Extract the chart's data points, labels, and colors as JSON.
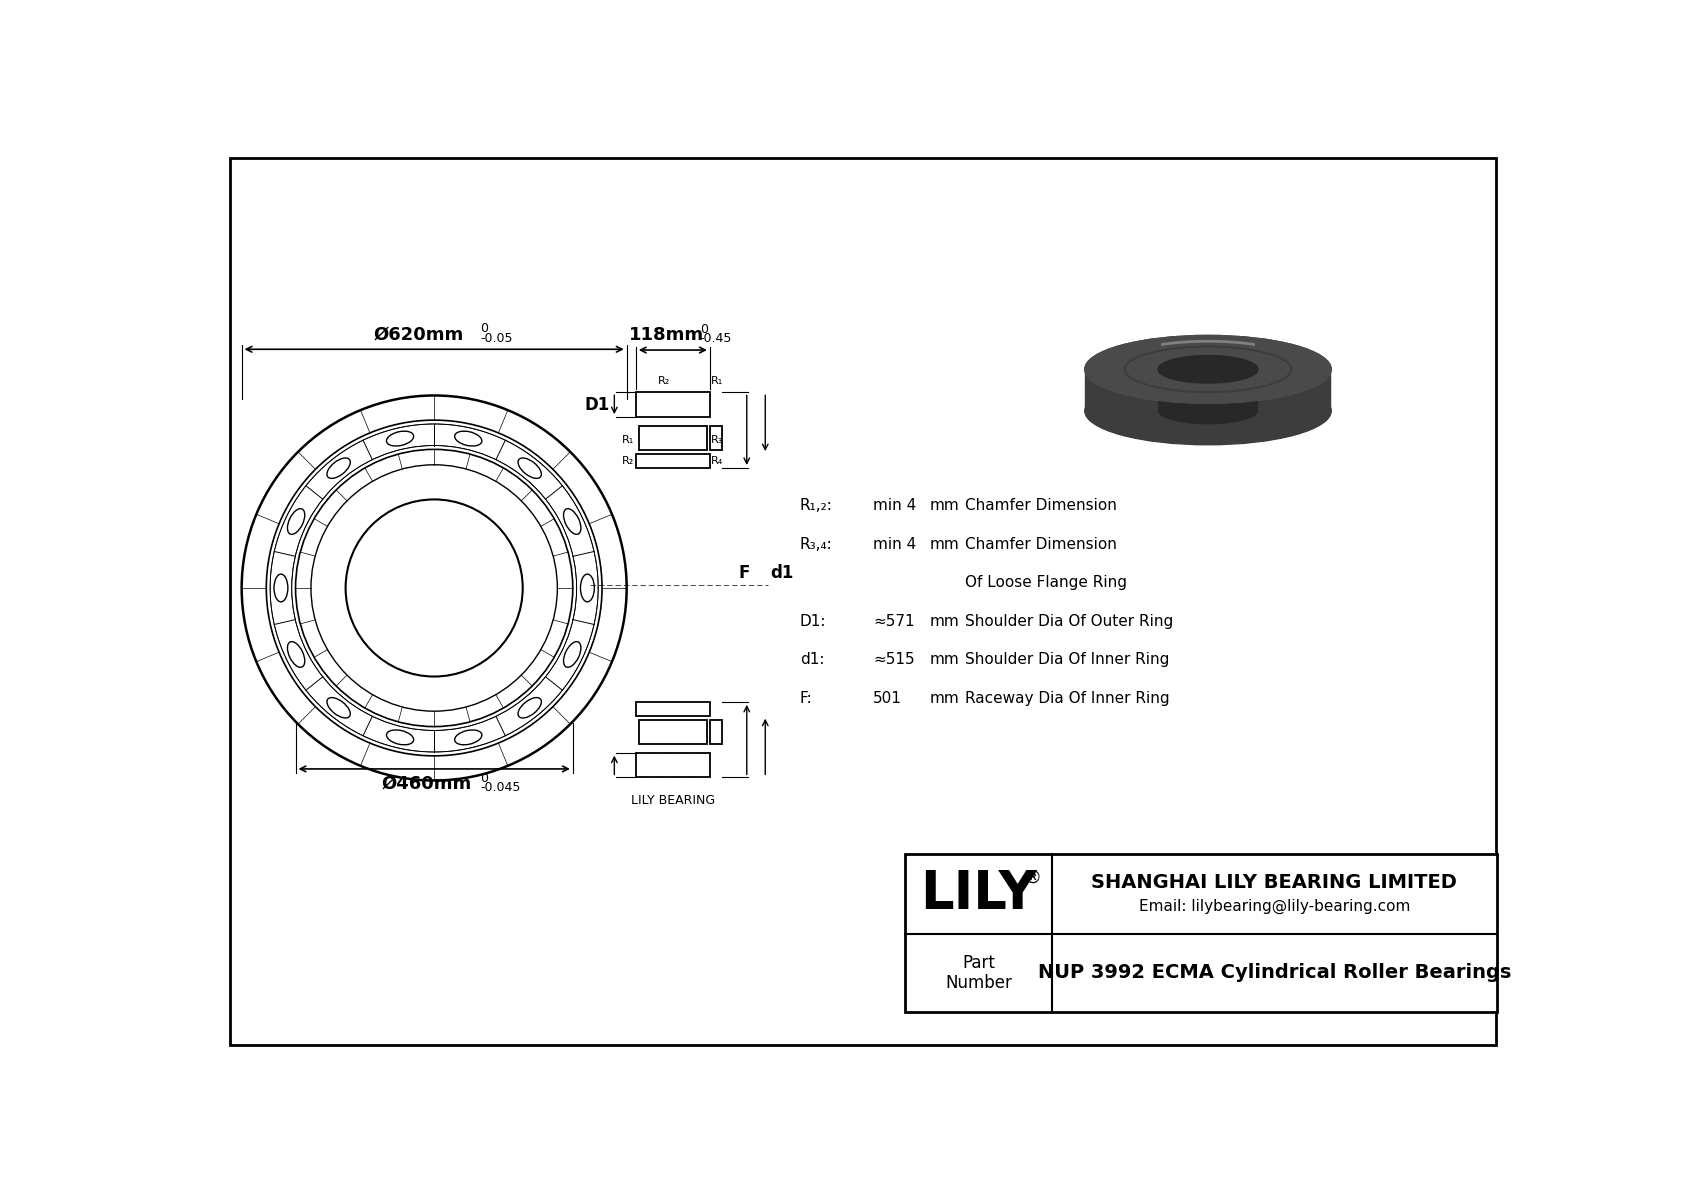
{
  "bg_color": "#ffffff",
  "title": "NUP 3992 ECMA Cylindrical Roller Bearings",
  "company": "SHANGHAI LILY BEARING LIMITED",
  "email": "Email: lilybearing@lily-bearing.com",
  "part_label": "Part\nNumber",
  "lily_bearing_label": "LILY BEARING",
  "dim_outer": "Ø620mm",
  "dim_outer_tol": "-0.05",
  "dim_outer_tol_top": "0",
  "dim_inner": "Ø460mm",
  "dim_inner_tol": "-0.045",
  "dim_inner_tol_top": "0",
  "dim_width": "118mm",
  "dim_width_tol": "-0.45",
  "dim_width_tol_top": "0",
  "specs": [
    {
      "label": "R₁,₂:",
      "value": "min 4",
      "unit": "mm",
      "desc": "Chamfer Dimension"
    },
    {
      "label": "R₃,₄:",
      "value": "min 4",
      "unit": "mm",
      "desc": "Chamfer Dimension"
    },
    {
      "label": "",
      "value": "",
      "unit": "",
      "desc": "Of Loose Flange Ring"
    },
    {
      "label": "D1:",
      "value": "≈571",
      "unit": "mm",
      "desc": "Shoulder Dia Of Outer Ring"
    },
    {
      "label": "d1:",
      "value": "≈515",
      "unit": "mm",
      "desc": "Shoulder Dia Of Inner Ring"
    },
    {
      "label": "F:",
      "value": "501",
      "unit": "mm",
      "desc": "Raceway Dia Of Inner Ring"
    }
  ]
}
